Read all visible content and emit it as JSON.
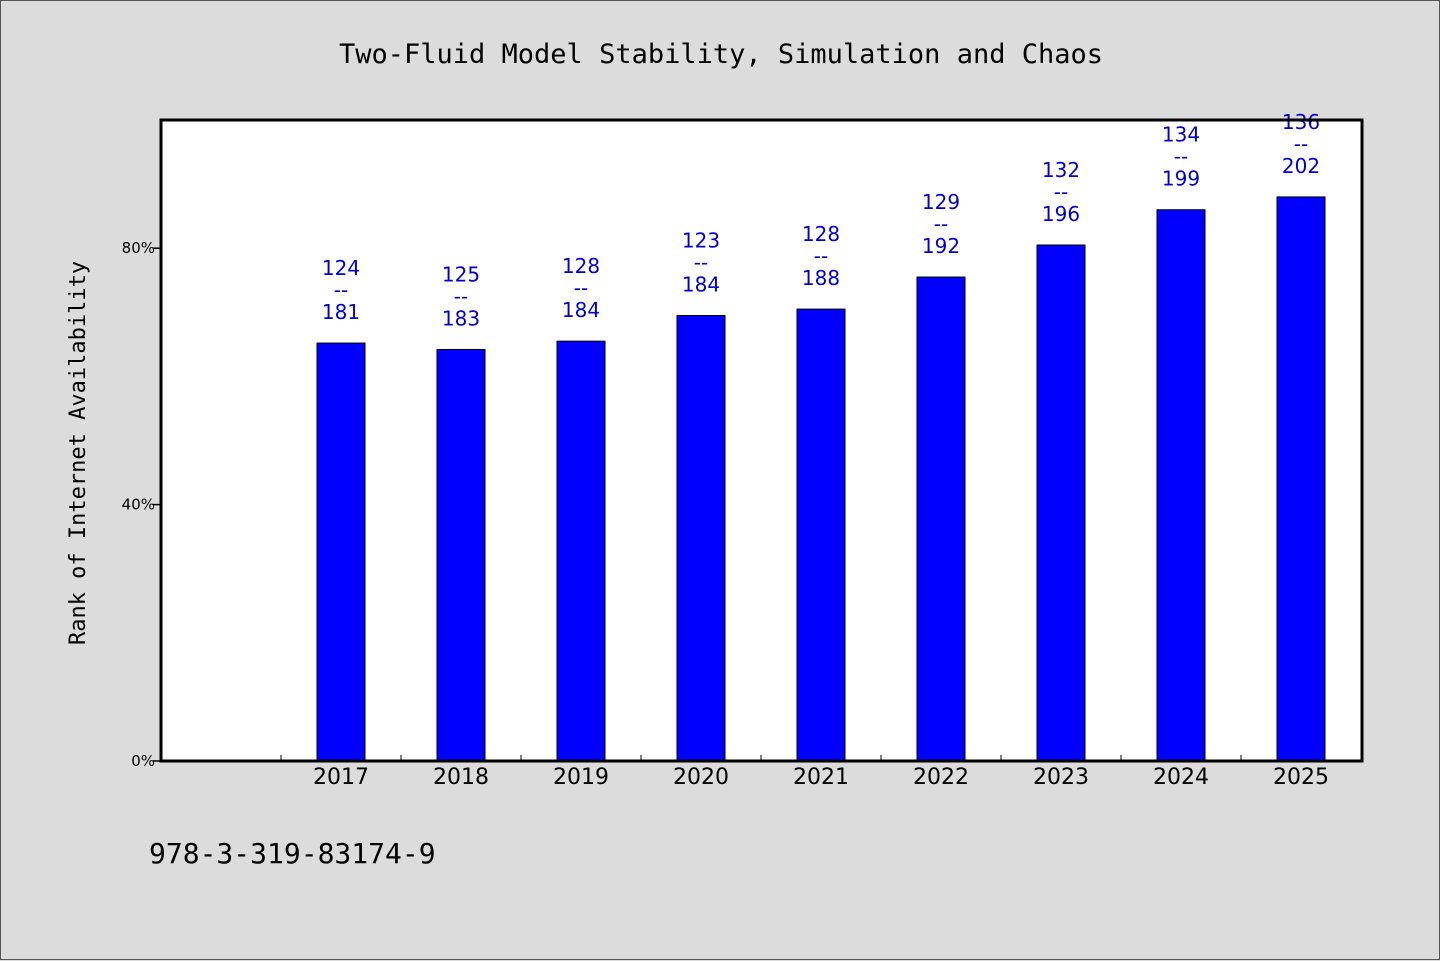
{
  "colors": {
    "bar": "#0000ff",
    "label": "#0000cc",
    "background": "#dcdcdc",
    "plot": "#ffffff"
  },
  "chart_data": {
    "type": "bar",
    "title": "Two-Fluid Model Stability, Simulation and Chaos",
    "ylabel": "Rank of Internet Availability",
    "xlabel": "",
    "ylim": [
      0,
      100
    ],
    "yticks": [
      {
        "value": 0,
        "label": "0%"
      },
      {
        "value": 40,
        "label": "40%"
      },
      {
        "value": 80,
        "label": "80%"
      }
    ],
    "categories": [
      "2017",
      "2018",
      "2019",
      "2020",
      "2021",
      "2022",
      "2023",
      "2024",
      "2025"
    ],
    "values": [
      65.2,
      64.2,
      65.5,
      69.5,
      70.5,
      75.5,
      80.5,
      86.0,
      88.0
    ],
    "labels": [
      {
        "top": "124",
        "mid": "--",
        "bottom": "181"
      },
      {
        "top": "125",
        "mid": "--",
        "bottom": "183"
      },
      {
        "top": "128",
        "mid": "--",
        "bottom": "184"
      },
      {
        "top": "123",
        "mid": "--",
        "bottom": "184"
      },
      {
        "top": "128",
        "mid": "--",
        "bottom": "188"
      },
      {
        "top": "129",
        "mid": "--",
        "bottom": "192"
      },
      {
        "top": "132",
        "mid": "--",
        "bottom": "196"
      },
      {
        "top": "134",
        "mid": "--",
        "bottom": "199"
      },
      {
        "top": "136",
        "mid": "--",
        "bottom": "202"
      }
    ],
    "grid": false,
    "legend": "none"
  },
  "footer": {
    "isbn": "978-3-319-83174-9"
  }
}
